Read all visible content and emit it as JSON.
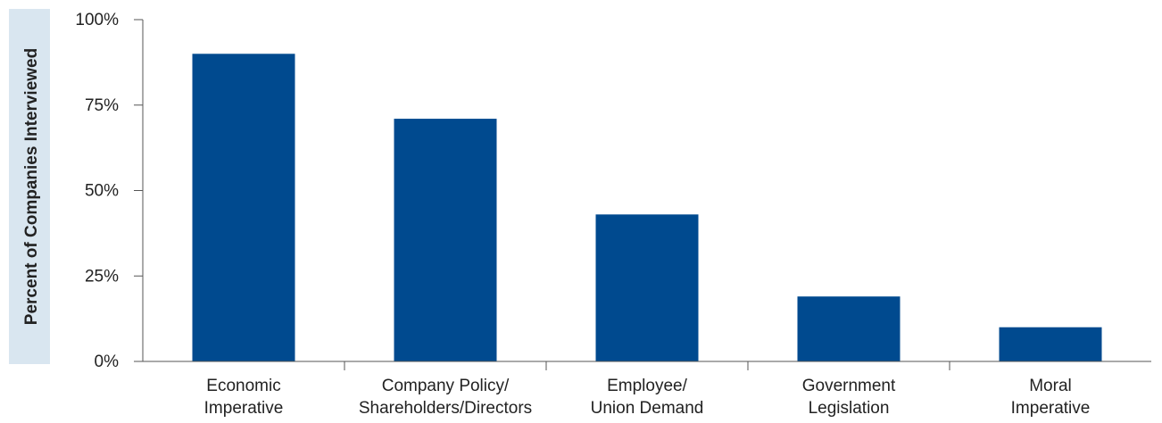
{
  "colors": {
    "bar": "#004a8f",
    "axis": "#555555",
    "ylabel_band": "#d9e6f0"
  },
  "chart_data": {
    "type": "bar",
    "title": "",
    "xlabel": "",
    "ylabel": "Percent of Companies Interviewed",
    "ylim": [
      0,
      100
    ],
    "yticks": [
      0,
      25,
      50,
      75,
      100
    ],
    "ytick_labels": [
      "0%",
      "25%",
      "50%",
      "75%",
      "100%"
    ],
    "grid": false,
    "legend": "none",
    "categories": [
      [
        "Economic",
        "Imperative"
      ],
      [
        "Company Policy/",
        "Shareholders/Directors"
      ],
      [
        "Employee/",
        "Union Demand"
      ],
      [
        "Government",
        "Legislation"
      ],
      [
        "Moral",
        "Imperative"
      ]
    ],
    "values": [
      90,
      71,
      43,
      19,
      10
    ]
  }
}
